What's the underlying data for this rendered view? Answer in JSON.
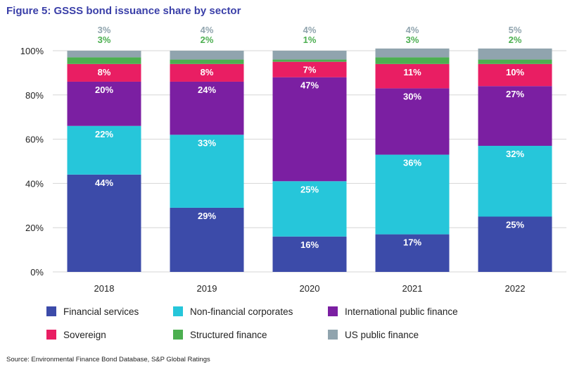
{
  "title": "Figure 5: GSSS bond issuance share by sector",
  "source": "Source: Environmental Finance Bond Database, S&P Global Ratings",
  "chart_data": {
    "type": "bar",
    "stacked": true,
    "categories": [
      "2018",
      "2019",
      "2020",
      "2021",
      "2022"
    ],
    "ylim": [
      0,
      100
    ],
    "yticks": [
      "0%",
      "20%",
      "40%",
      "60%",
      "80%",
      "100%"
    ],
    "grid": true,
    "legend_position": "bottom",
    "series": [
      {
        "name": "Financial services",
        "color": "#3c4ba9",
        "values": [
          44,
          29,
          16,
          17,
          25
        ],
        "labels": [
          "44%",
          "29%",
          "16%",
          "17%",
          "25%"
        ],
        "label_color": "#ffffff"
      },
      {
        "name": "Non-financial corporates",
        "color": "#26c6da",
        "values": [
          22,
          33,
          25,
          36,
          32
        ],
        "labels": [
          "22%",
          "33%",
          "25%",
          "36%",
          "32%"
        ],
        "label_color": "#ffffff"
      },
      {
        "name": "International public finance",
        "color": "#7b1fa2",
        "values": [
          20,
          24,
          47,
          30,
          27
        ],
        "labels": [
          "20%",
          "24%",
          "47%",
          "30%",
          "27%"
        ],
        "label_color": "#ffffff"
      },
      {
        "name": "Sovereign",
        "color": "#e91e63",
        "values": [
          8,
          8,
          7,
          11,
          10
        ],
        "labels": [
          "8%",
          "8%",
          "7%",
          "11%",
          "10%"
        ],
        "label_color": "#ffffff"
      },
      {
        "name": "Structured finance",
        "color": "#4caf50",
        "values": [
          3,
          2,
          1,
          3,
          2
        ],
        "labels": [
          "3%",
          "2%",
          "1%",
          "3%",
          "2%"
        ],
        "label_color": "#4caf50",
        "label_outside": true
      },
      {
        "name": "US public finance",
        "color": "#90a4ae",
        "values": [
          3,
          4,
          4,
          4,
          5
        ],
        "labels": [
          "3%",
          "4%",
          "4%",
          "4%",
          "5%"
        ],
        "label_color": "#90a4ae",
        "label_outside": true
      }
    ]
  }
}
